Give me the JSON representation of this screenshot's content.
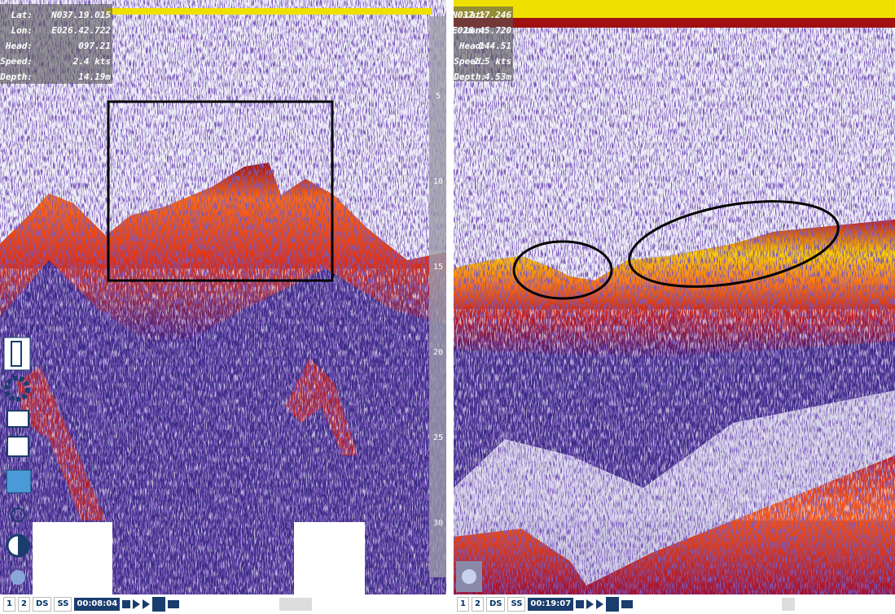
{
  "left_panel": {
    "info": [
      {
        "label": "Lat:",
        "value": "N037.19.015"
      },
      {
        "label": "Lon:",
        "value": "E026.42.722"
      },
      {
        "label": "Head:",
        "value": "097.21"
      },
      {
        "label": "Speed:",
        "value": "2.4 kts"
      },
      {
        "label": "Depth:",
        "value": "14.19m"
      }
    ],
    "depth_scale": [
      "5",
      "10",
      "15",
      "20",
      "25",
      "30"
    ],
    "toolbar": {
      "buttons": [
        "1",
        "2",
        "DS",
        "SS"
      ],
      "time": "00:08:04"
    }
  },
  "right_panel": {
    "info": [
      {
        "label": "Lat:",
        "value": "N037.17.246"
      },
      {
        "label": "Lon:",
        "value": "E026.45.720"
      },
      {
        "label": "Head:",
        "value": "144.51"
      },
      {
        "label": "Speed:",
        "value": "2.5 kts"
      },
      {
        "label": "Depth:",
        "value": "4.53m"
      }
    ],
    "toolbar": {
      "buttons": [
        "1",
        "2",
        "DS",
        "SS"
      ],
      "time": "00:19:07"
    }
  }
}
